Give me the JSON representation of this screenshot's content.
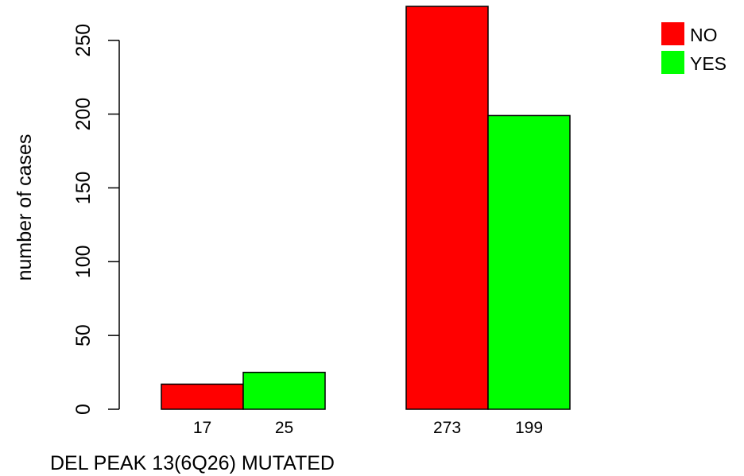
{
  "chart_data": {
    "type": "bar",
    "groups": [
      "",
      ""
    ],
    "series": [
      {
        "name": "NO",
        "color": "#FF0000",
        "values": [
          17,
          273
        ]
      },
      {
        "name": "YES",
        "color": "#00FF00",
        "values": [
          25,
          199
        ]
      }
    ],
    "bar_labels": [
      [
        "17",
        "25"
      ],
      [
        "273",
        "199"
      ]
    ],
    "xlabel": "DEL PEAK 13(6Q26) MUTATED",
    "ylabel": "number of cases",
    "ylim": [
      0,
      273
    ],
    "yticks": [
      0,
      50,
      100,
      150,
      200,
      250
    ],
    "legend": {
      "position": "top-right",
      "items": [
        "NO",
        "YES"
      ]
    },
    "grid": false
  }
}
